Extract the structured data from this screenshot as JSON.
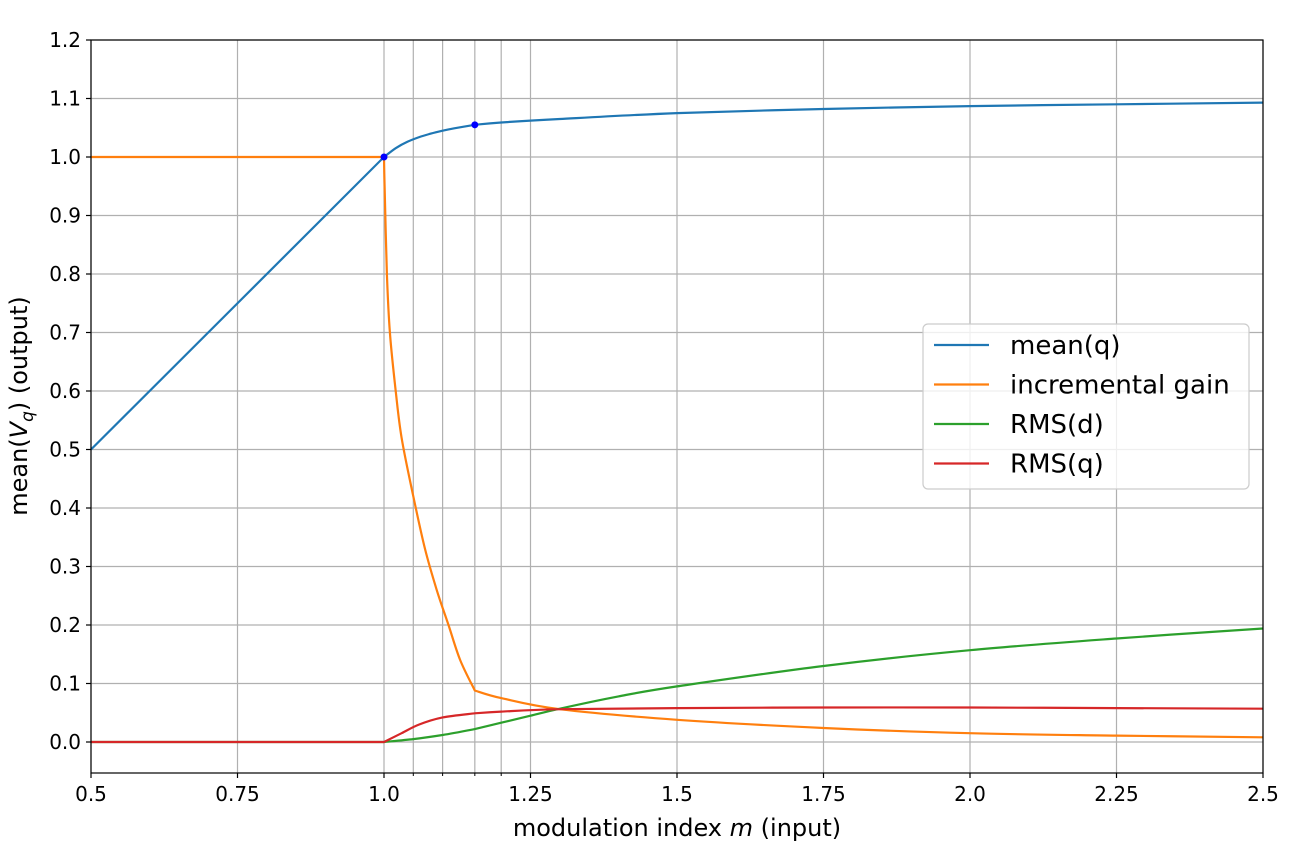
{
  "chart_data": {
    "type": "line",
    "title": "",
    "xlabel": "modulation index m (input)",
    "ylabel": "mean(V_q) (output)",
    "xlim": [
      0.5,
      2.5
    ],
    "ylim": [
      -0.053,
      1.2
    ],
    "grid": true,
    "legend_position": "center right",
    "x_ticks": [
      "0.5",
      "0.75",
      "1.0",
      "1.25",
      "1.5",
      "1.75",
      "2.0",
      "2.25",
      "2.5"
    ],
    "x_tick_values": [
      0.5,
      0.75,
      1.0,
      1.25,
      1.5,
      1.75,
      2.0,
      2.25,
      2.5
    ],
    "x_minor_grid": [
      1.05,
      1.1,
      1.155,
      1.2
    ],
    "y_ticks": [
      "0.0",
      "0.1",
      "0.2",
      "0.3",
      "0.4",
      "0.5",
      "0.6",
      "0.7",
      "0.8",
      "0.9",
      "1.0",
      "1.1",
      "1.2"
    ],
    "y_tick_values": [
      0.0,
      0.1,
      0.2,
      0.3,
      0.4,
      0.5,
      0.6,
      0.7,
      0.8,
      0.9,
      1.0,
      1.1,
      1.2
    ],
    "series": [
      {
        "name": "mean(q)",
        "color": "#1f77b4",
        "x": [
          0.5,
          1.0,
          1.02,
          1.04,
          1.06,
          1.08,
          1.1,
          1.12,
          1.155,
          1.2,
          1.3,
          1.5,
          1.75,
          2.0,
          2.25,
          2.5
        ],
        "values": [
          0.5,
          1.0,
          1.015,
          1.026,
          1.034,
          1.04,
          1.045,
          1.049,
          1.055,
          1.059,
          1.065,
          1.075,
          1.082,
          1.087,
          1.09,
          1.093
        ]
      },
      {
        "name": "incremental gain",
        "color": "#ff7f0e",
        "x": [
          0.5,
          1.0,
          1.001,
          1.005,
          1.01,
          1.02,
          1.03,
          1.05,
          1.07,
          1.09,
          1.11,
          1.13,
          1.155,
          1.2,
          1.3,
          1.5,
          1.75,
          2.0,
          2.25,
          2.5
        ],
        "values": [
          1.0,
          1.0,
          0.95,
          0.8,
          0.7,
          0.6,
          0.52,
          0.42,
          0.33,
          0.26,
          0.2,
          0.14,
          0.088,
          0.075,
          0.056,
          0.038,
          0.024,
          0.015,
          0.011,
          0.008
        ]
      },
      {
        "name": "RMS(d)",
        "color": "#2ca02c",
        "x": [
          0.5,
          1.0,
          1.05,
          1.1,
          1.155,
          1.2,
          1.25,
          1.3,
          1.4,
          1.5,
          1.75,
          2.0,
          2.25,
          2.5
        ],
        "values": [
          0.0,
          0.0,
          0.005,
          0.012,
          0.022,
          0.033,
          0.045,
          0.057,
          0.078,
          0.095,
          0.13,
          0.157,
          0.177,
          0.194
        ]
      },
      {
        "name": "RMS(q)",
        "color": "#d62728",
        "x": [
          0.5,
          1.0,
          1.03,
          1.06,
          1.1,
          1.155,
          1.2,
          1.3,
          1.5,
          1.75,
          2.0,
          2.25,
          2.5
        ],
        "values": [
          0.0,
          0.0,
          0.015,
          0.03,
          0.042,
          0.049,
          0.052,
          0.056,
          0.058,
          0.059,
          0.059,
          0.058,
          0.057
        ]
      }
    ],
    "markers": {
      "color": "#0000ff",
      "points": [
        [
          1.0,
          1.0
        ],
        [
          1.155,
          1.055
        ]
      ]
    }
  },
  "axes": {
    "xlabel_prefix": "modulation index ",
    "xlabel_var": "m",
    "xlabel_suffix": " (input)",
    "ylabel_prefix": "mean(",
    "ylabel_var": "V",
    "ylabel_sub": "q",
    "ylabel_suffix": ") (output)"
  },
  "legend": {
    "items": [
      {
        "label": "mean(q)",
        "color": "#1f77b4"
      },
      {
        "label": "incremental gain",
        "color": "#ff7f0e"
      },
      {
        "label": "RMS(d)",
        "color": "#2ca02c"
      },
      {
        "label": "RMS(q)",
        "color": "#d62728"
      }
    ]
  }
}
